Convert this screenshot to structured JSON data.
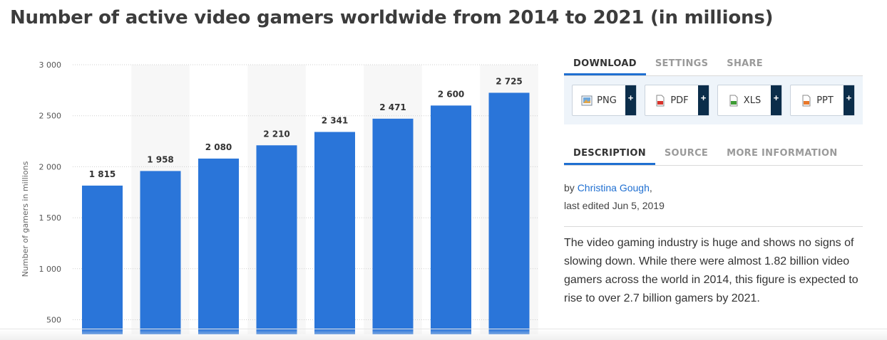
{
  "page_title": "Number of active video gamers worldwide from 2014 to 2021 (in millions)",
  "chart_data": {
    "type": "bar",
    "title": "Number of active video gamers worldwide from 2014 to 2021 (in millions)",
    "ylabel": "Number of gamers in millions",
    "xlabel": "",
    "ylim": [
      500,
      3000
    ],
    "yticks": [
      500,
      1000,
      1500,
      2000,
      2500,
      3000
    ],
    "ytick_labels": [
      "500",
      "1 000",
      "1 500",
      "2 000",
      "2 500",
      "3 000"
    ],
    "values": [
      1815,
      1958,
      2080,
      2210,
      2341,
      2471,
      2600,
      2725
    ],
    "value_labels": [
      "1 815",
      "1 958",
      "2 080",
      "2 210",
      "2 341",
      "2 471",
      "2 600",
      "2 725"
    ],
    "grid": true,
    "bar_color": "#2a75d9"
  },
  "download_tabs": [
    {
      "label": "DOWNLOAD",
      "active": true
    },
    {
      "label": "SETTINGS",
      "active": false
    },
    {
      "label": "SHARE",
      "active": false
    }
  ],
  "download_buttons": [
    {
      "label": "PNG",
      "icon": "png-file-icon",
      "plus": "+"
    },
    {
      "label": "PDF",
      "icon": "pdf-file-icon",
      "plus": "+"
    },
    {
      "label": "XLS",
      "icon": "xls-file-icon",
      "plus": "+"
    },
    {
      "label": "PPT",
      "icon": "ppt-file-icon",
      "plus": "+"
    }
  ],
  "info_tabs": [
    {
      "label": "DESCRIPTION",
      "active": true
    },
    {
      "label": "SOURCE",
      "active": false
    },
    {
      "label": "MORE INFORMATION",
      "active": false
    }
  ],
  "author": {
    "prefix": "by ",
    "name": "Christina Gough",
    "suffix": ",",
    "edited": "last edited Jun 5, 2019"
  },
  "description": "The video gaming industry is huge and shows no signs of slowing down. While there were almost 1.82 billion video gamers across the world in 2014, this figure is expected to rise to over 2.7 billion gamers by 2021.",
  "colors": {
    "accent": "#1f6fd1",
    "bar": "#2a75d9",
    "plus_bg": "#0b2d4a",
    "download_bg": "#eef4fa"
  }
}
